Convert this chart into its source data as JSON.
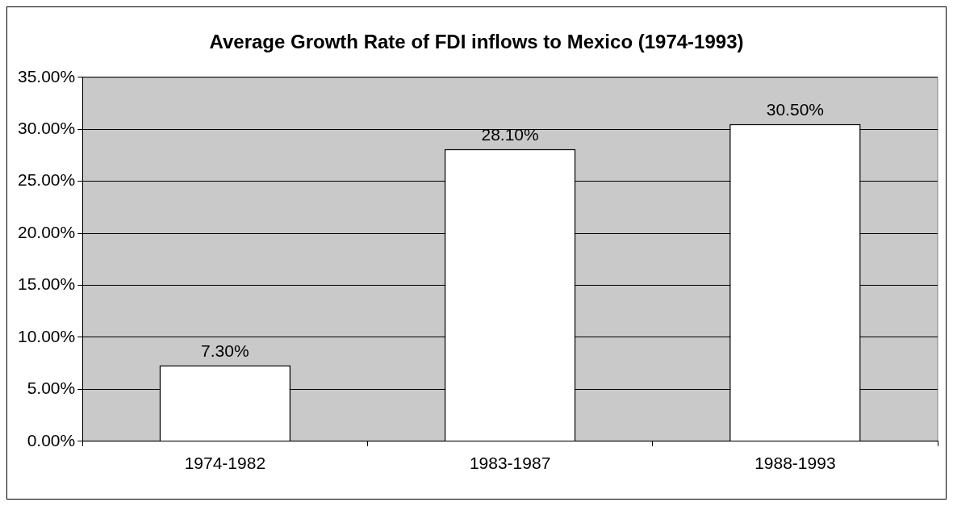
{
  "chart_data": {
    "type": "bar",
    "title": "Average Growth Rate of FDI inflows to Mexico (1974-1993)",
    "categories": [
      "1974-1982",
      "1983-1987",
      "1988-1993"
    ],
    "values": [
      7.3,
      28.1,
      30.5
    ],
    "value_labels": [
      "7.30%",
      "28.10%",
      "30.50%"
    ],
    "color": "#ffffff",
    "ylim": [
      0,
      35
    ],
    "yticks": [
      {
        "value": 0,
        "label": "0.00%"
      },
      {
        "value": 5,
        "label": "5.00%"
      },
      {
        "value": 10,
        "label": "10.00%"
      },
      {
        "value": 15,
        "label": "15.00%"
      },
      {
        "value": 20,
        "label": "20.00%"
      },
      {
        "value": 25,
        "label": "25.00%"
      },
      {
        "value": 30,
        "label": "30.00%"
      },
      {
        "value": 35,
        "label": "35.00%"
      }
    ],
    "grid": "y",
    "legend": false
  }
}
